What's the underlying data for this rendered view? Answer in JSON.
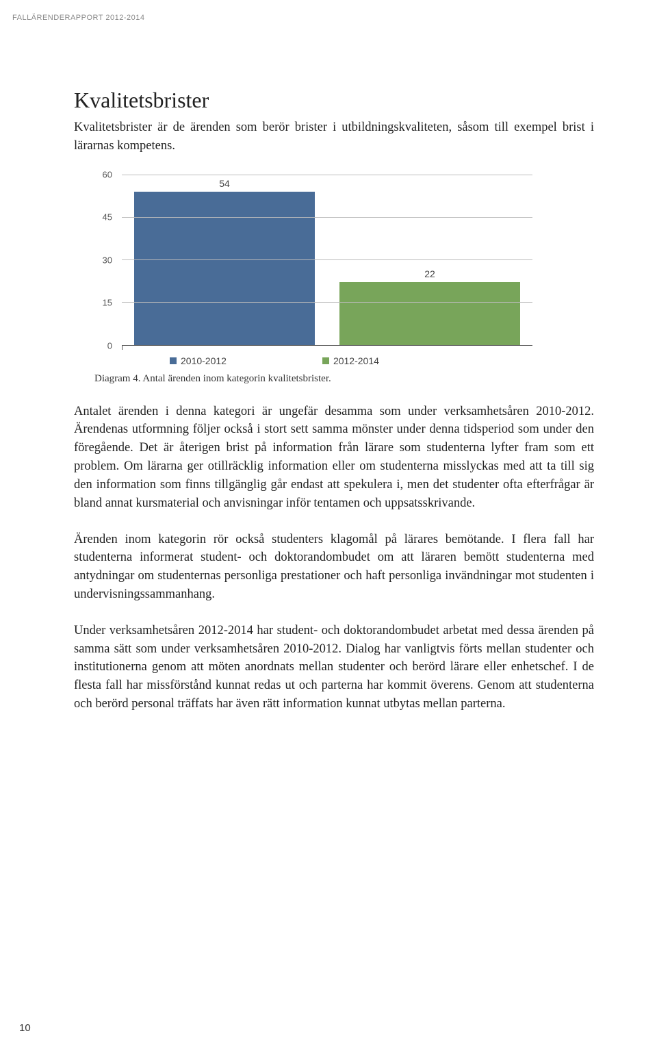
{
  "header": "FALLÄRENDERAPPORT 2012-2014",
  "title": "Kvalitetsbrister",
  "intro": "Kvalitetsbrister är de ärenden som berör brister i utbildningskvaliteten, såsom till exempel brist i lärarnas kompetens.",
  "chart": {
    "type": "bar",
    "ylim": [
      0,
      60
    ],
    "ytick_step": 15,
    "yticks": [
      0,
      15,
      30,
      45,
      60
    ],
    "series": [
      {
        "label": "2010-2012",
        "value": 54,
        "color": "#496c97"
      },
      {
        "label": "2012-2014",
        "value": 22,
        "color": "#78a55a"
      }
    ],
    "grid_color": "#bbbbbb",
    "axis_color": "#555555",
    "background_color": "#ffffff",
    "value_fontsize": 14,
    "tick_fontsize": 13,
    "legend_fontsize": 14
  },
  "caption": "Diagram 4. Antal ärenden inom kategorin kvalitetsbrister.",
  "para1": "Antalet ärenden i denna kategori är ungefär desamma som under verksamhetsåren 2010-2012. Ärendenas utformning följer också i stort sett samma mönster under denna tidsperiod som under den föregående. Det är återigen brist på information från lärare som studenterna lyfter fram som ett problem. Om lärarna ger otillräcklig information eller om studenterna misslyckas med att ta till sig den information som finns tillgänglig går endast att spekulera i, men det studenter ofta efterfrågar är bland annat kursmaterial och anvisningar inför tentamen och uppsatsskrivande.",
  "para2": "Ärenden inom kategorin rör också studenters klagomål på lärares bemötande. I flera fall har studenterna informerat student- och doktorandombudet om att läraren bemött studenterna med antydningar om studenternas personliga prestationer och haft personliga invändningar mot studenten i undervisningssammanhang.",
  "para3": "Under verksamhetsåren 2012-2014 har student- och doktorandombudet arbetat med dessa ärenden på samma sätt som under verksamhetsåren 2010-2012. Dialog har vanligtvis förts mellan studenter och institutionerna genom att möten anordnats mellan studenter och berörd lärare eller enhetschef. I de flesta fall har missförstånd kunnat redas ut och parterna har kommit överens. Genom att studenterna och berörd personal träffats har även rätt information kunnat utbytas mellan parterna.",
  "page_number": "10"
}
